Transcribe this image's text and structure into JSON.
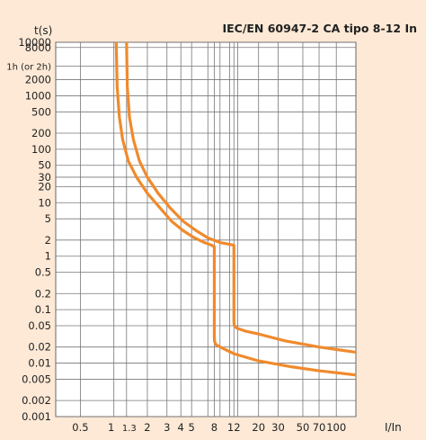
{
  "chart_data": {
    "type": "line",
    "title": "IEC/EN 60947-2 CA tipo 8-12 In",
    "xlabel": "I/In",
    "ylabel": "t(s)",
    "x_scale": "log",
    "y_scale": "log",
    "xlim": [
      0.3,
      150
    ],
    "ylim": [
      0.001,
      10000
    ],
    "x_ticks": [
      {
        "value": 0.5,
        "label": "0.5"
      },
      {
        "value": 1,
        "label": "1"
      },
      {
        "value": 1.3,
        "label": "1.3"
      },
      {
        "value": 2,
        "label": "2"
      },
      {
        "value": 3,
        "label": "3"
      },
      {
        "value": 4,
        "label": "4"
      },
      {
        "value": 5,
        "label": "5"
      },
      {
        "value": 8,
        "label": "8"
      },
      {
        "value": 12,
        "label": "12"
      },
      {
        "value": 20,
        "label": "20"
      },
      {
        "value": 30,
        "label": "30"
      },
      {
        "value": 50,
        "label": "50"
      },
      {
        "value": 70,
        "label": "70"
      },
      {
        "value": 100,
        "label": "100"
      }
    ],
    "x_minor_lines": [
      7,
      9,
      11,
      13
    ],
    "y_ticks": [
      {
        "value": 10000,
        "label": "10000"
      },
      {
        "value": 8000,
        "label": "8000"
      },
      {
        "value": 3600,
        "label": "1h (or 2h)"
      },
      {
        "value": 2000,
        "label": "2000"
      },
      {
        "value": 1000,
        "label": "1000"
      },
      {
        "value": 500,
        "label": "500"
      },
      {
        "value": 200,
        "label": "200"
      },
      {
        "value": 100,
        "label": "100"
      },
      {
        "value": 50,
        "label": "50"
      },
      {
        "value": 30,
        "label": "30"
      },
      {
        "value": 20,
        "label": "20"
      },
      {
        "value": 10,
        "label": "10"
      },
      {
        "value": 5,
        "label": "5"
      },
      {
        "value": 2,
        "label": "2"
      },
      {
        "value": 1,
        "label": "1"
      },
      {
        "value": 0.5,
        "label": "0.5"
      },
      {
        "value": 0.2,
        "label": "0.2"
      },
      {
        "value": 0.1,
        "label": "0.1"
      },
      {
        "value": 0.05,
        "label": "0.05"
      },
      {
        "value": 0.02,
        "label": "0.02"
      },
      {
        "value": 0.01,
        "label": "0.01"
      },
      {
        "value": 0.005,
        "label": "0.005"
      },
      {
        "value": 0.002,
        "label": "0.002"
      },
      {
        "value": 0.001,
        "label": "0.001"
      }
    ],
    "grid": true,
    "colors": {
      "background": "#fde9d6",
      "plot": "#ffffff",
      "grid": "#777777",
      "curve": "#f08a2c"
    },
    "series": [
      {
        "x": [
          1.05,
          1.07,
          1.12,
          1.2,
          1.35,
          1.6,
          2.0,
          2.6,
          3.3,
          4.2,
          5.3,
          6.5,
          7.6,
          8.0,
          8.0,
          8.05,
          8.3,
          9.5,
          12,
          20,
          40,
          70,
          150
        ],
        "y": [
          10000,
          1500,
          400,
          150,
          60,
          30,
          15,
          8,
          4.5,
          3,
          2.2,
          1.8,
          1.6,
          1.5,
          0.03,
          0.025,
          0.022,
          0.019,
          0.015,
          0.011,
          0.0085,
          0.0072,
          0.006
        ]
      },
      {
        "x": [
          1.3,
          1.32,
          1.38,
          1.5,
          1.7,
          2.0,
          2.5,
          3.2,
          4.2,
          5.5,
          7,
          9,
          11.2,
          12,
          12,
          12.1,
          12.8,
          15,
          20,
          35,
          70,
          150
        ],
        "y": [
          10000,
          1500,
          400,
          150,
          60,
          30,
          15,
          8,
          4.5,
          3,
          2.2,
          1.8,
          1.65,
          1.6,
          0.06,
          0.05,
          0.045,
          0.04,
          0.035,
          0.026,
          0.02,
          0.016
        ]
      }
    ]
  }
}
